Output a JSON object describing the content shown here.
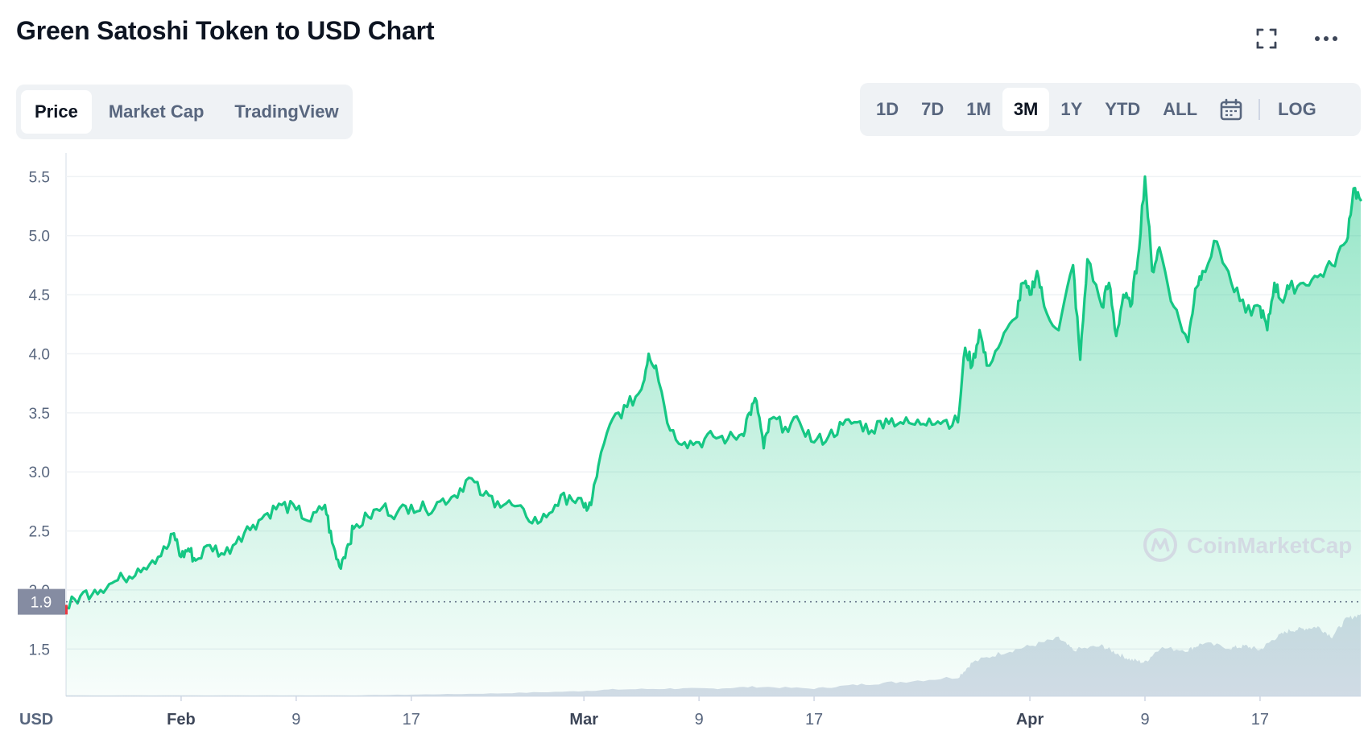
{
  "header": {
    "title": "Green Satoshi Token to USD Chart",
    "fullscreen_icon": "fullscreen-icon",
    "more_icon": "more-horizontal-icon"
  },
  "tabs": [
    {
      "label": "Price",
      "active": true
    },
    {
      "label": "Market Cap",
      "active": false
    },
    {
      "label": "TradingView",
      "active": false
    }
  ],
  "ranges": [
    {
      "label": "1D",
      "active": false
    },
    {
      "label": "7D",
      "active": false
    },
    {
      "label": "1M",
      "active": false
    },
    {
      "label": "3M",
      "active": true
    },
    {
      "label": "1Y",
      "active": false
    },
    {
      "label": "YTD",
      "active": false
    },
    {
      "label": "ALL",
      "active": false
    }
  ],
  "calendar_icon": "calendar-icon",
  "log_label": "LOG",
  "watermark": "CoinMarketCap",
  "colors": {
    "line": "#16c784",
    "area_top": "#16c784",
    "grid": "#eff2f5",
    "volume": "#cfd6e4",
    "start_marker": "#ea3943",
    "badge": "#858ca2"
  },
  "chart_data": {
    "type": "line",
    "currency_label": "USD",
    "current_price_label": "1.9",
    "reference_price": 1.9,
    "y_ticks": [
      1.5,
      2.0,
      2.5,
      3.0,
      3.5,
      4.0,
      4.5,
      5.0,
      5.5
    ],
    "y_tick_labels": [
      "1.5",
      "2.0",
      "2.5",
      "3.0",
      "3.5",
      "4.0",
      "4.5",
      "5.0",
      "5.5"
    ],
    "ylim": [
      1.1,
      5.7
    ],
    "x_ticks": [
      {
        "day": 8,
        "label": "Feb",
        "major": true
      },
      {
        "day": 16,
        "label": "9",
        "major": false
      },
      {
        "day": 24,
        "label": "17",
        "major": false
      },
      {
        "day": 36,
        "label": "Mar",
        "major": true
      },
      {
        "day": 44,
        "label": "9",
        "major": false
      },
      {
        "day": 52,
        "label": "17",
        "major": false
      },
      {
        "day": 67,
        "label": "Apr",
        "major": true
      },
      {
        "day": 75,
        "label": "9",
        "major": false
      },
      {
        "day": 83,
        "label": "17",
        "major": false
      }
    ],
    "xlim": [
      0,
      90
    ],
    "x_unit": "days",
    "grid": true,
    "series": [
      {
        "kind": "price",
        "x": [
          0,
          1,
          2,
          3,
          4,
          5,
          6,
          7,
          7.5,
          8,
          8.5,
          9,
          10,
          11,
          12,
          13,
          14,
          15,
          16,
          17,
          18,
          18.5,
          19,
          19.5,
          20,
          21,
          22,
          23,
          24,
          25,
          26,
          27,
          28,
          29,
          30,
          31,
          32,
          33,
          34,
          35,
          36,
          36.5,
          37,
          38,
          39,
          40,
          40.5,
          41,
          42,
          43,
          44,
          45,
          46,
          47,
          47.5,
          48,
          48.5,
          49,
          50,
          51,
          52,
          53,
          54,
          55,
          56,
          57,
          58,
          59,
          60,
          61,
          62,
          62.5,
          63,
          63.5,
          64,
          65,
          66,
          66.5,
          67,
          67.5,
          68,
          69,
          70,
          70.5,
          71,
          72,
          72.5,
          73,
          73.5,
          74,
          74.5,
          75,
          75.5,
          76,
          77,
          78,
          78.5,
          79,
          80,
          81,
          82,
          83,
          83.5,
          84,
          84.5,
          85,
          86,
          87,
          88,
          89,
          89.5,
          90
        ],
        "y": [
          1.85,
          1.95,
          2.0,
          2.05,
          2.1,
          2.18,
          2.25,
          2.35,
          2.48,
          2.28,
          2.35,
          2.25,
          2.38,
          2.3,
          2.45,
          2.55,
          2.65,
          2.72,
          2.68,
          2.58,
          2.72,
          2.4,
          2.2,
          2.35,
          2.52,
          2.62,
          2.7,
          2.65,
          2.72,
          2.68,
          2.75,
          2.8,
          2.95,
          2.8,
          2.75,
          2.72,
          2.62,
          2.58,
          2.72,
          2.8,
          2.7,
          2.72,
          3.05,
          3.45,
          3.55,
          3.7,
          4.0,
          3.9,
          3.35,
          3.25,
          3.25,
          3.3,
          3.28,
          3.32,
          3.5,
          3.6,
          3.2,
          3.45,
          3.38,
          3.42,
          3.25,
          3.3,
          3.4,
          3.42,
          3.35,
          3.45,
          3.42,
          3.4,
          3.45,
          3.43,
          3.42,
          4.05,
          3.9,
          4.2,
          3.9,
          4.1,
          4.3,
          4.6,
          4.5,
          4.7,
          4.4,
          4.2,
          4.75,
          3.95,
          4.8,
          4.4,
          4.6,
          4.15,
          4.5,
          4.4,
          4.8,
          5.5,
          4.7,
          4.9,
          4.4,
          4.1,
          4.55,
          4.7,
          4.95,
          4.6,
          4.35,
          4.4,
          4.2,
          4.6,
          4.45,
          4.55,
          4.6,
          4.65,
          4.75,
          4.95,
          5.4,
          5.3
        ],
        "start_marker_value": 1.82
      },
      {
        "kind": "volume",
        "x": [
          0,
          10,
          20,
          25,
          30,
          35,
          38,
          42,
          45,
          48,
          52,
          55,
          58,
          62,
          63,
          65,
          67,
          69,
          70,
          72,
          73,
          74,
          75,
          76,
          78,
          79,
          81,
          82,
          83,
          84,
          85,
          86,
          87,
          88,
          89,
          90
        ],
        "relative_level": [
          0.01,
          0.01,
          0.01,
          0.02,
          0.03,
          0.05,
          0.07,
          0.08,
          0.08,
          0.1,
          0.08,
          0.12,
          0.15,
          0.2,
          0.35,
          0.45,
          0.52,
          0.6,
          0.48,
          0.52,
          0.45,
          0.38,
          0.35,
          0.5,
          0.48,
          0.55,
          0.5,
          0.52,
          0.48,
          0.6,
          0.68,
          0.7,
          0.72,
          0.62,
          0.8,
          0.85
        ]
      }
    ]
  }
}
